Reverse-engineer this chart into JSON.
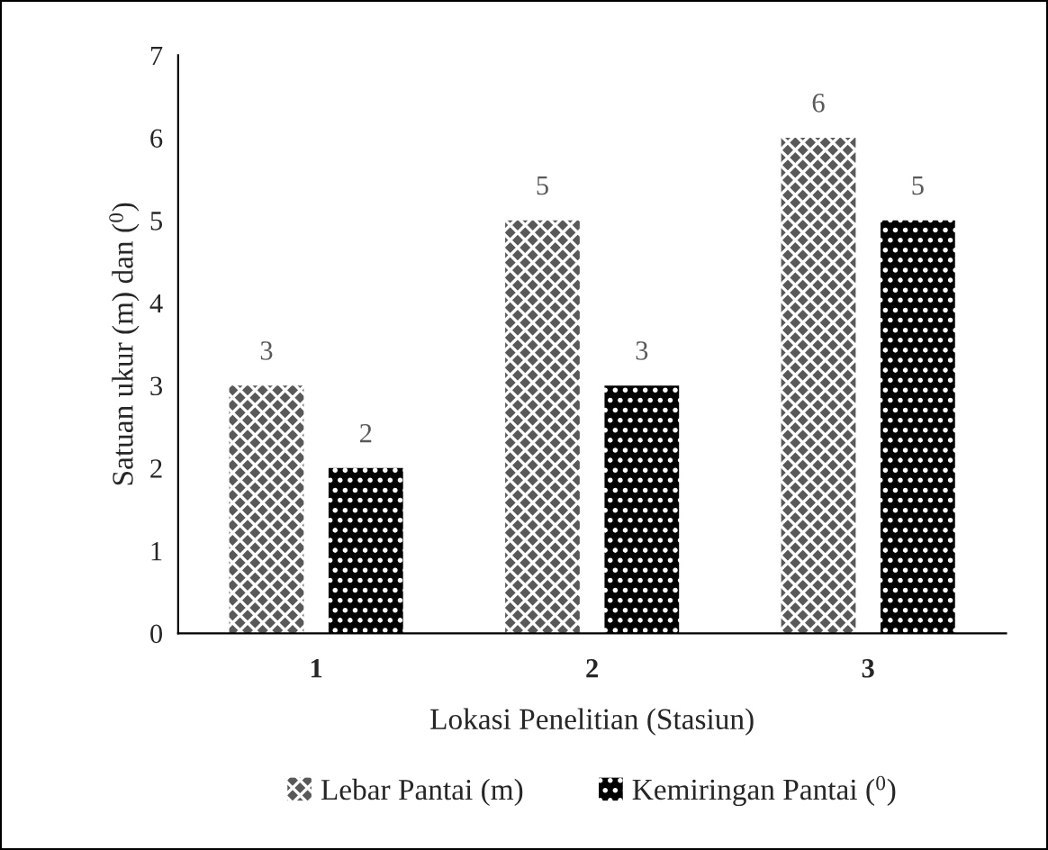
{
  "chart_data": {
    "type": "bar",
    "xlabel": "Lokasi Penelitian (Stasiun)",
    "ylabel": "Satuan ukur (m) dan ($^{0}$)",
    "categories": [
      "1",
      "2",
      "3"
    ],
    "series": [
      {
        "name": "Lebar Pantai (m)",
        "color": "#595959",
        "values": [
          3,
          5,
          6
        ]
      },
      {
        "name": "Kemiringan Pantai ($^{0}$)",
        "color": "#000000",
        "values": [
          2,
          3,
          5
        ]
      }
    ],
    "ylim": [
      0,
      7
    ],
    "yticks": [
      0,
      1,
      2,
      3,
      4,
      5,
      6,
      7
    ],
    "grid": false,
    "legend": "bottom",
    "data_labels": true
  }
}
